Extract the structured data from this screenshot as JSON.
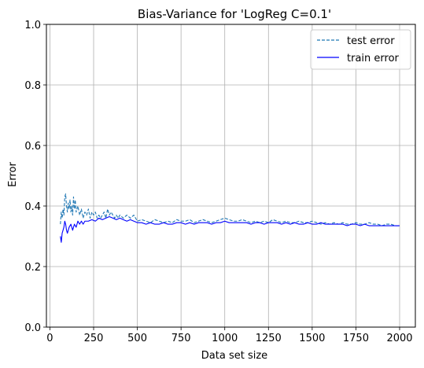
{
  "chart_data": {
    "type": "line",
    "title": "Bias-Variance for 'LogReg C=0.1'",
    "xlabel": "Data set size",
    "ylabel": "Error",
    "xlim": [
      -20,
      2090
    ],
    "ylim": [
      0,
      1
    ],
    "xticks": [
      0,
      250,
      500,
      750,
      1000,
      1250,
      1500,
      1750,
      2000
    ],
    "xtick_labels": [
      "0",
      "250",
      "500",
      "750",
      "1000",
      "1250",
      "1500",
      "1750",
      "2000"
    ],
    "yticks": [
      0.0,
      0.2,
      0.4,
      0.6,
      0.8,
      1.0
    ],
    "ytick_labels": [
      "0.0",
      "0.2",
      "0.4",
      "0.6",
      "0.8",
      "1.0"
    ],
    "grid": true,
    "legend_position": "top-right",
    "series": [
      {
        "name": "test error",
        "color": "#1f77b4",
        "style": "dashed",
        "x": [
          60,
          65,
          70,
          75,
          80,
          85,
          90,
          95,
          100,
          105,
          110,
          115,
          120,
          125,
          130,
          135,
          140,
          145,
          150,
          160,
          170,
          180,
          190,
          200,
          210,
          220,
          230,
          240,
          250,
          260,
          270,
          280,
          290,
          300,
          310,
          320,
          330,
          340,
          350,
          360,
          370,
          380,
          390,
          400,
          420,
          440,
          460,
          480,
          500,
          525,
          550,
          575,
          600,
          625,
          650,
          675,
          700,
          725,
          750,
          775,
          800,
          825,
          850,
          875,
          900,
          925,
          950,
          975,
          1000,
          1025,
          1050,
          1075,
          1100,
          1125,
          1150,
          1175,
          1200,
          1225,
          1250,
          1275,
          1300,
          1325,
          1350,
          1375,
          1400,
          1425,
          1450,
          1475,
          1500,
          1525,
          1550,
          1575,
          1600,
          1625,
          1650,
          1675,
          1700,
          1725,
          1750,
          1775,
          1800,
          1825,
          1850,
          1875,
          1900,
          1925,
          1950,
          1975,
          2000
        ],
        "y": [
          0.34,
          0.38,
          0.36,
          0.39,
          0.37,
          0.43,
          0.44,
          0.4,
          0.38,
          0.41,
          0.39,
          0.42,
          0.38,
          0.4,
          0.37,
          0.43,
          0.39,
          0.42,
          0.38,
          0.4,
          0.37,
          0.39,
          0.36,
          0.38,
          0.37,
          0.39,
          0.36,
          0.38,
          0.37,
          0.38,
          0.36,
          0.37,
          0.36,
          0.37,
          0.38,
          0.36,
          0.39,
          0.37,
          0.38,
          0.37,
          0.36,
          0.37,
          0.36,
          0.37,
          0.36,
          0.37,
          0.36,
          0.37,
          0.35,
          0.355,
          0.35,
          0.345,
          0.355,
          0.35,
          0.345,
          0.35,
          0.345,
          0.355,
          0.35,
          0.35,
          0.355,
          0.345,
          0.35,
          0.355,
          0.35,
          0.345,
          0.35,
          0.355,
          0.36,
          0.355,
          0.35,
          0.35,
          0.355,
          0.35,
          0.345,
          0.35,
          0.345,
          0.35,
          0.345,
          0.355,
          0.35,
          0.345,
          0.35,
          0.345,
          0.345,
          0.35,
          0.345,
          0.345,
          0.35,
          0.345,
          0.34,
          0.345,
          0.34,
          0.345,
          0.34,
          0.345,
          0.34,
          0.34,
          0.345,
          0.34,
          0.34,
          0.345,
          0.34,
          0.34,
          0.335,
          0.34,
          0.34,
          0.335,
          0.335
        ]
      },
      {
        "name": "train error",
        "color": "#0000ff",
        "style": "solid",
        "x": [
          60,
          65,
          70,
          75,
          80,
          85,
          90,
          95,
          100,
          110,
          120,
          130,
          140,
          150,
          160,
          170,
          180,
          190,
          200,
          220,
          240,
          260,
          280,
          300,
          320,
          340,
          360,
          380,
          400,
          420,
          440,
          460,
          480,
          500,
          525,
          550,
          575,
          600,
          625,
          650,
          675,
          700,
          725,
          750,
          775,
          800,
          825,
          850,
          875,
          900,
          925,
          950,
          975,
          1000,
          1025,
          1050,
          1075,
          1100,
          1125,
          1150,
          1175,
          1200,
          1225,
          1250,
          1275,
          1300,
          1325,
          1350,
          1375,
          1400,
          1425,
          1450,
          1475,
          1500,
          1525,
          1550,
          1575,
          1600,
          1625,
          1650,
          1675,
          1700,
          1725,
          1750,
          1775,
          1800,
          1825,
          1850,
          1875,
          1900,
          1925,
          1950,
          1975,
          2000
        ],
        "y": [
          0.3,
          0.28,
          0.31,
          0.32,
          0.33,
          0.35,
          0.34,
          0.32,
          0.31,
          0.33,
          0.34,
          0.32,
          0.34,
          0.33,
          0.35,
          0.34,
          0.35,
          0.34,
          0.35,
          0.35,
          0.355,
          0.35,
          0.36,
          0.355,
          0.36,
          0.365,
          0.36,
          0.355,
          0.36,
          0.355,
          0.35,
          0.355,
          0.35,
          0.345,
          0.345,
          0.34,
          0.345,
          0.34,
          0.34,
          0.345,
          0.34,
          0.34,
          0.345,
          0.345,
          0.34,
          0.345,
          0.34,
          0.345,
          0.345,
          0.345,
          0.34,
          0.345,
          0.345,
          0.35,
          0.345,
          0.345,
          0.345,
          0.345,
          0.345,
          0.34,
          0.345,
          0.345,
          0.34,
          0.345,
          0.345,
          0.345,
          0.34,
          0.345,
          0.34,
          0.345,
          0.34,
          0.34,
          0.345,
          0.34,
          0.34,
          0.345,
          0.34,
          0.34,
          0.34,
          0.34,
          0.34,
          0.335,
          0.34,
          0.34,
          0.335,
          0.34,
          0.335,
          0.335,
          0.335,
          0.335,
          0.335,
          0.335,
          0.335,
          0.335
        ]
      }
    ]
  }
}
